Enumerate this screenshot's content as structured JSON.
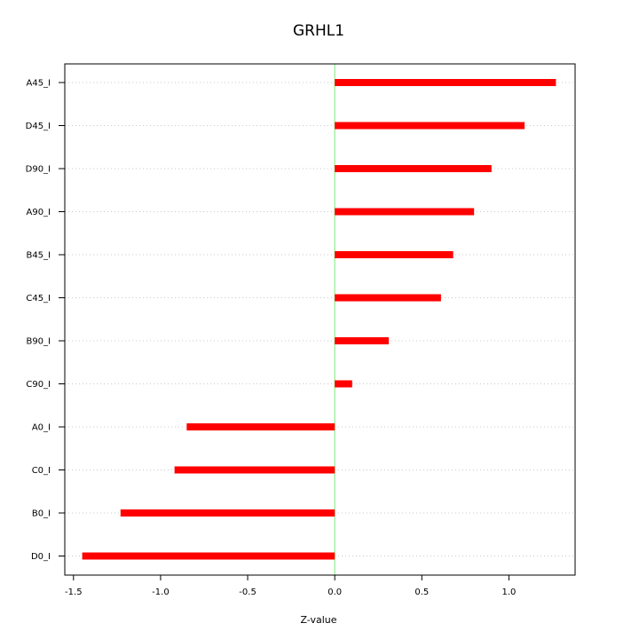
{
  "chart_data": {
    "type": "bar",
    "orientation": "horizontal",
    "title": "GRHL1",
    "xlabel": "Z-value",
    "ylabel": "",
    "categories": [
      "A45_I",
      "D45_I",
      "D90_I",
      "A90_I",
      "B45_I",
      "C45_I",
      "B90_I",
      "C90_I",
      "A0_I",
      "C0_I",
      "B0_I",
      "D0_I"
    ],
    "values": [
      1.27,
      1.09,
      0.9,
      0.8,
      0.68,
      0.61,
      0.31,
      0.1,
      -0.85,
      -0.92,
      -1.23,
      -1.45
    ],
    "xlim": [
      -1.55,
      1.38
    ],
    "xticks": [
      -1.5,
      -1.0,
      -0.5,
      0.0,
      0.5,
      1.0
    ],
    "xtick_labels": [
      "-1.5",
      "-1.0",
      "-0.5",
      "0.0",
      "0.5",
      "1.0"
    ],
    "grid": "horizontal dotted",
    "colors": {
      "bar": "#ff0000",
      "zero_line": "#90ee90",
      "grid": "#c8c8c8",
      "axis": "#000000"
    }
  }
}
